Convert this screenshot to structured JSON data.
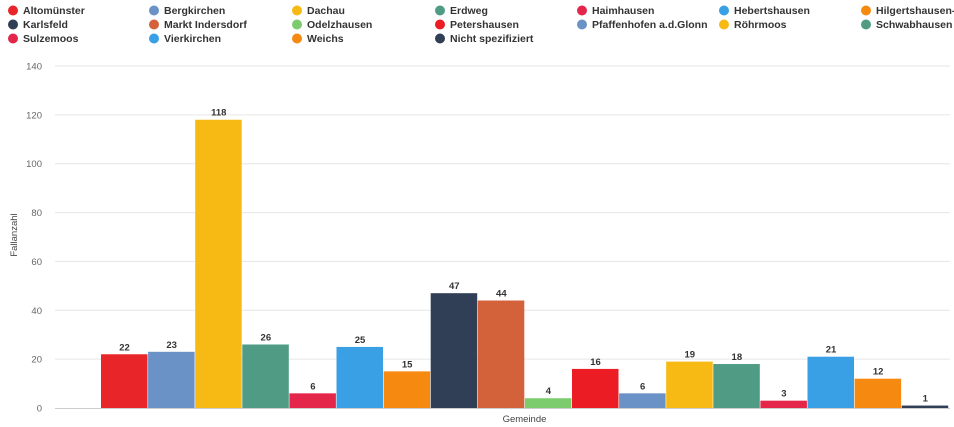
{
  "chart_data": {
    "type": "bar",
    "title": "",
    "xlabel": "Gemeinde",
    "ylabel": "Fallanzahl",
    "ylim": [
      0,
      140
    ],
    "yticks": [
      0,
      20,
      40,
      60,
      80,
      100,
      120,
      140
    ],
    "grid": true,
    "legend_position": "top",
    "show_data_labels": true,
    "series": [
      {
        "name": "Altomünster",
        "value": 22,
        "color": "#e8262a"
      },
      {
        "name": "Bergkirchen",
        "value": 23,
        "color": "#6b92c6"
      },
      {
        "name": "Dachau",
        "value": 118,
        "color": "#f7b914"
      },
      {
        "name": "Erdweg",
        "value": 26,
        "color": "#4f9b84"
      },
      {
        "name": "Haimhausen",
        "value": 6,
        "color": "#e4264a"
      },
      {
        "name": "Hebertshausen",
        "value": 25,
        "color": "#3aa0e6"
      },
      {
        "name": "Hilgertshausen-Tandern",
        "value": 15,
        "color": "#f68a10"
      },
      {
        "name": "Karlsfeld",
        "value": 47,
        "color": "#303e56"
      },
      {
        "name": "Markt Indersdorf",
        "value": 44,
        "color": "#d3613a"
      },
      {
        "name": "Odelzhausen",
        "value": 4,
        "color": "#7ccc6d"
      },
      {
        "name": "Petershausen",
        "value": 16,
        "color": "#ec1c24"
      },
      {
        "name": "Pfaffenhofen a.d.Glonn",
        "value": 6,
        "color": "#6b92c6"
      },
      {
        "name": "Röhrmoos",
        "value": 19,
        "color": "#f7b914"
      },
      {
        "name": "Schwabhausen",
        "value": 18,
        "color": "#4f9b84"
      },
      {
        "name": "Sulzemoos",
        "value": 3,
        "color": "#e4264a"
      },
      {
        "name": "Vierkirchen",
        "value": 21,
        "color": "#3aa0e6"
      },
      {
        "name": "Weichs",
        "value": 12,
        "color": "#f68a10"
      },
      {
        "name": "Nicht spezifiziert",
        "value": 1,
        "color": "#303e56"
      }
    ]
  }
}
